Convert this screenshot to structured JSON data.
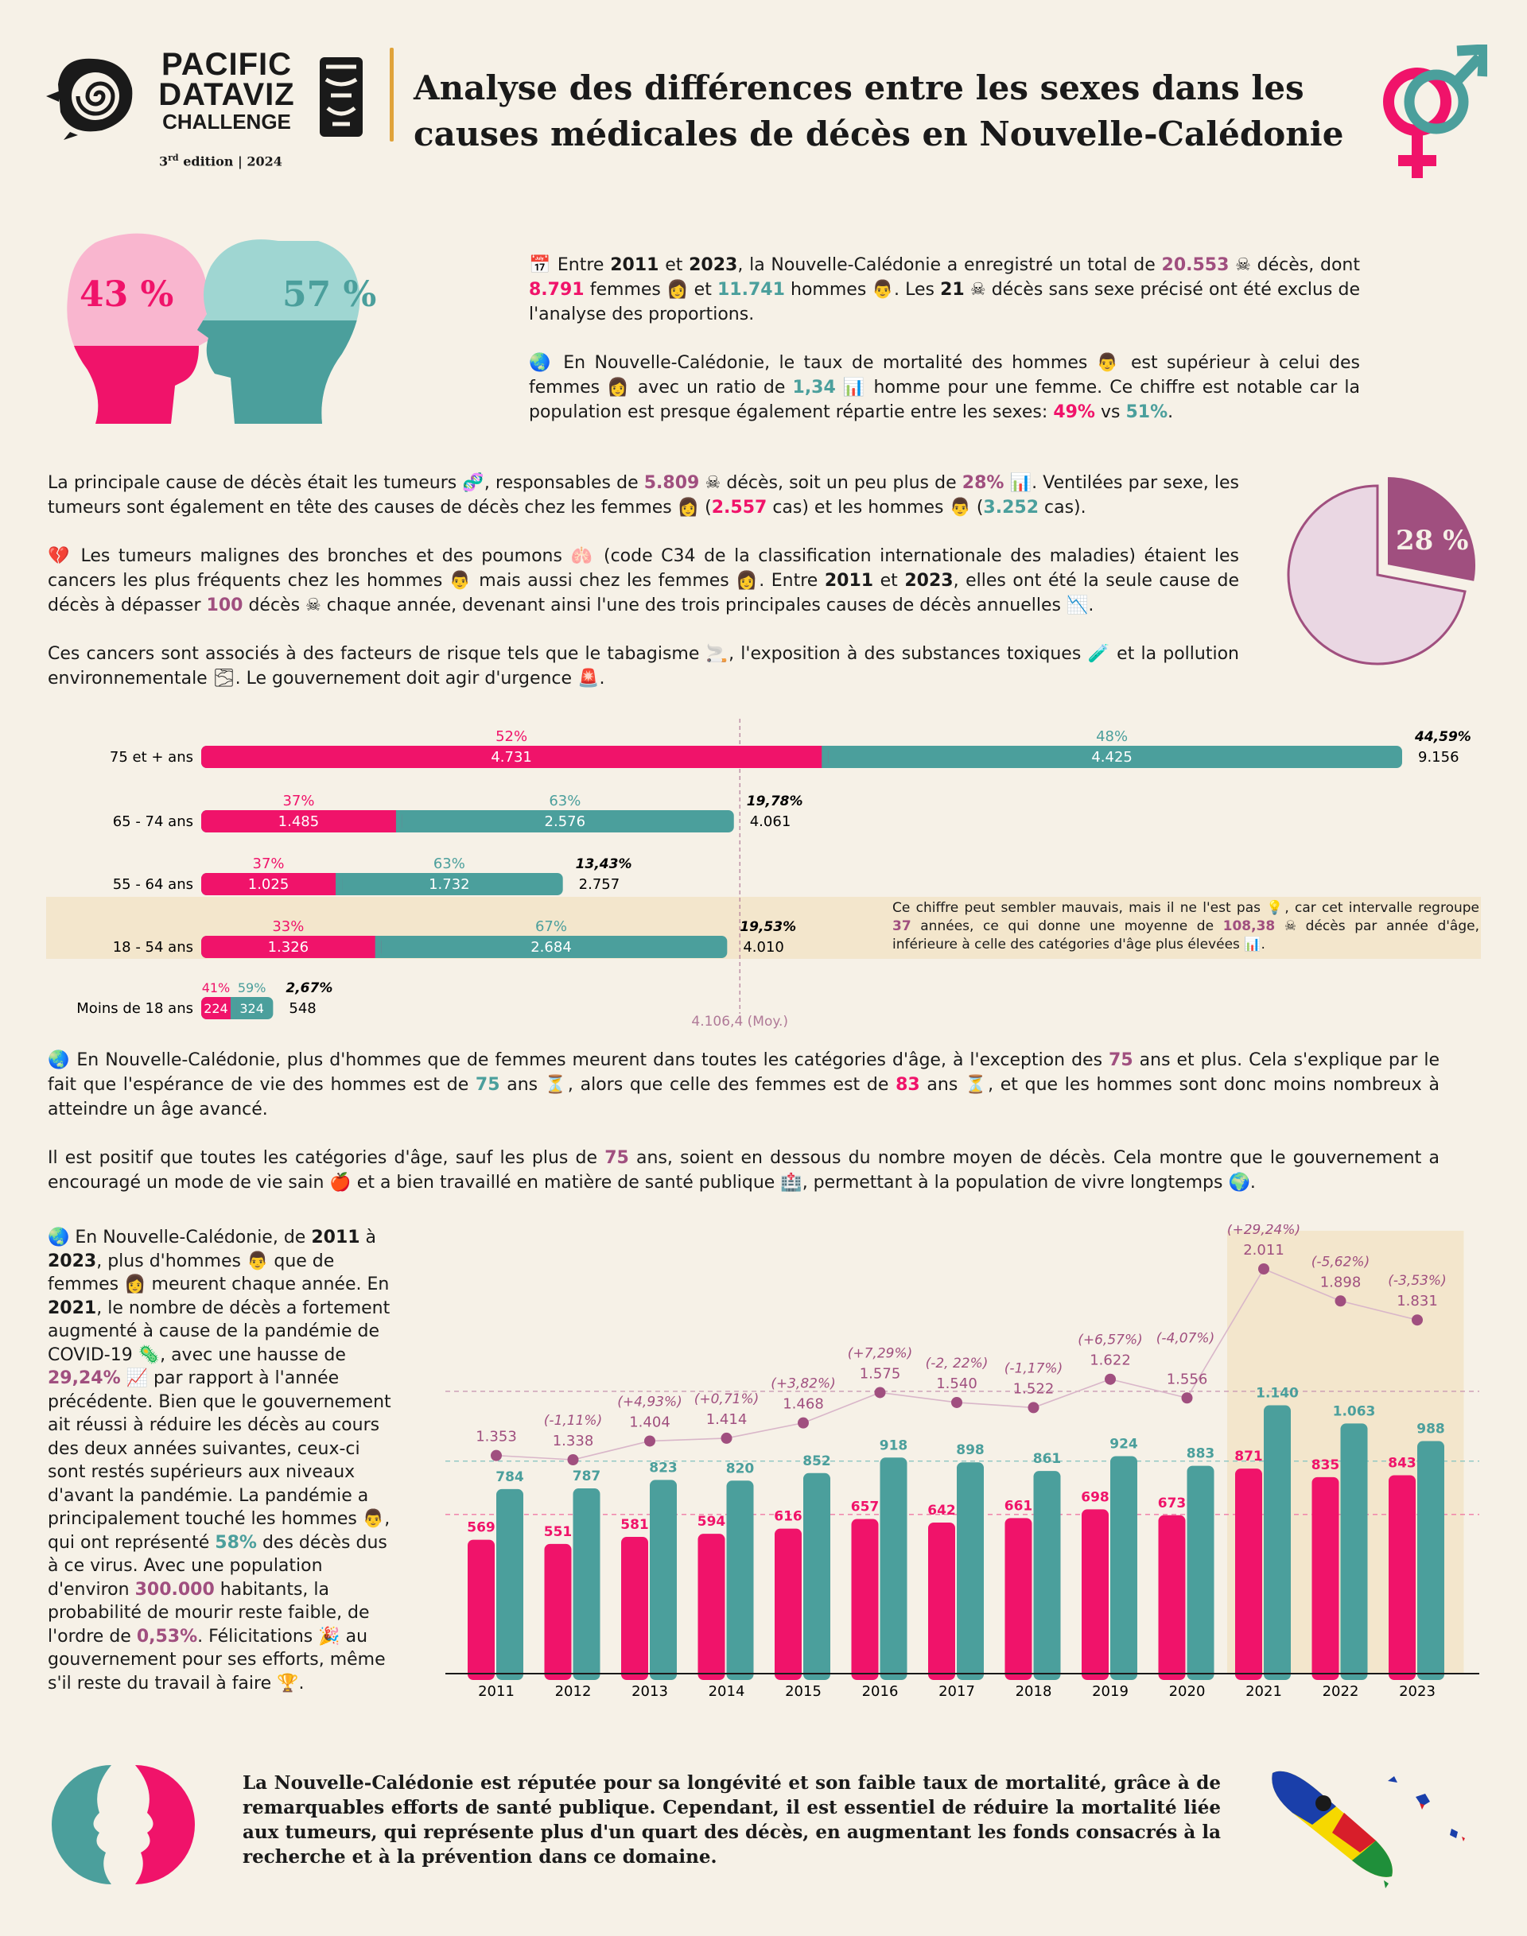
{
  "header": {
    "logo_line1": "PACIFIC",
    "logo_line2": "DATAVIZ",
    "logo_line3": "CHALLENGE",
    "edition_num": "3",
    "edition_sup": "rd",
    "edition_rest": "edition | 2024",
    "title_line1": "Analyse des différences entre les sexes dans les",
    "title_line2": "causes médicales de décès en Nouvelle-Calédonie"
  },
  "heads": {
    "female_pct": "43 %",
    "male_pct": "57 %"
  },
  "intro": {
    "p1": [
      {
        "t": "📅 Entre "
      },
      {
        "t": "2011",
        "c": "b"
      },
      {
        "t": " et "
      },
      {
        "t": "2023",
        "c": "b"
      },
      {
        "t": ", la Nouvelle-Calédonie a enregistré un total de "
      },
      {
        "t": "20.553",
        "c": "plum"
      },
      {
        "t": " ☠ décès, dont "
      },
      {
        "t": "8.791",
        "c": "pink"
      },
      {
        "t": " femmes 👩 et "
      },
      {
        "t": "11.741",
        "c": "teal"
      },
      {
        "t": " hommes 👨. Les "
      },
      {
        "t": "21",
        "c": "b"
      },
      {
        "t": " ☠ décès sans sexe précisé ont été exclus de l'analyse des proportions."
      }
    ],
    "p2": [
      {
        "t": "🌏 En Nouvelle-Calédonie, le taux de mortalité des hommes 👨 est supérieur à celui des femmes 👩 avec un ratio de "
      },
      {
        "t": "1,34",
        "c": "teal"
      },
      {
        "t": " 📊 homme pour une femme. Ce chiffre est notable car la population est presque également répartie entre les sexes: "
      },
      {
        "t": "49%",
        "c": "pink"
      },
      {
        "t": " vs "
      },
      {
        "t": "51%",
        "c": "teal"
      },
      {
        "t": "."
      }
    ]
  },
  "tumors": {
    "p1": [
      {
        "t": "La principale cause de décès était les tumeurs 🧬, responsables de "
      },
      {
        "t": "5.809",
        "c": "plum"
      },
      {
        "t": " ☠ décès, soit un peu plus de "
      },
      {
        "t": "28%",
        "c": "plum"
      },
      {
        "t": " 📊. Ventilées par sexe, les tumeurs sont également en tête des causes de décès chez les femmes 👩 ("
      },
      {
        "t": "2.557",
        "c": "pink"
      },
      {
        "t": " cas) et les hommes 👨 ("
      },
      {
        "t": "3.252",
        "c": "teal"
      },
      {
        "t": " cas)."
      }
    ],
    "p2": [
      {
        "t": "💔 Les tumeurs malignes des bronches et des poumons 🫁 (code C34 de la classification internationale des maladies) étaient les cancers les plus fréquents chez les hommes 👨 mais aussi chez les femmes 👩. Entre "
      },
      {
        "t": "2011",
        "c": "b"
      },
      {
        "t": " et "
      },
      {
        "t": "2023",
        "c": "b"
      },
      {
        "t": ", elles ont été la seule cause de décès à dépasser "
      },
      {
        "t": "100",
        "c": "plum"
      },
      {
        "t": " décès ☠ chaque année, devenant ainsi l'une des trois principales causes de décès annuelles 📉."
      }
    ],
    "p3": [
      {
        "t": "Ces cancers sont associés à des facteurs de risque tels que le tabagisme 🚬, l'exposition à des substances toxiques 🧪 et la pollution environnementale 🌫. Le gouvernement doit agir d'urgence 🚨."
      }
    ],
    "pie_label": "28 %",
    "pie_share": 0.28
  },
  "age_chart": {
    "rows": [
      {
        "label": "75 et + ans",
        "f_pct": "52%",
        "m_pct": "48%",
        "f": "4.731",
        "m": "4.425",
        "f_n": 4731,
        "m_n": 4425,
        "share": "44,59%",
        "total": "9.156"
      },
      {
        "label": "65 - 74 ans",
        "f_pct": "37%",
        "m_pct": "63%",
        "f": "1.485",
        "m": "2.576",
        "f_n": 1485,
        "m_n": 2576,
        "share": "19,78%",
        "total": "4.061"
      },
      {
        "label": "55 - 64 ans",
        "f_pct": "37%",
        "m_pct": "63%",
        "f": "1.025",
        "m": "1.732",
        "f_n": 1025,
        "m_n": 1732,
        "share": "13,43%",
        "total": "2.757"
      },
      {
        "label": "18 - 54 ans",
        "f_pct": "33%",
        "m_pct": "67%",
        "f": "1.326",
        "m": "2.684",
        "f_n": 1326,
        "m_n": 2684,
        "share": "19,53%",
        "total": "4.010"
      },
      {
        "label": "Moins de 18 ans",
        "f_pct": "41%",
        "m_pct": "59%",
        "f": "224",
        "m": "324",
        "f_n": 224,
        "m_n": 324,
        "share": "2,67%",
        "total": "548"
      }
    ],
    "mean_label": "4.106,4 (Moy.)",
    "mean_value": 4106.4,
    "note": [
      {
        "t": "Ce chiffre peut sembler mauvais, mais il ne l'est pas 💡, car cet intervalle regroupe "
      },
      {
        "t": "37",
        "c": "plum"
      },
      {
        "t": " années, ce qui donne une moyenne de "
      },
      {
        "t": "108,38",
        "c": "plum"
      },
      {
        "t": " ☠ décès par année d'âge, inférieure à celle des catégories d'âge plus élevées 📊."
      }
    ]
  },
  "age_text": {
    "p1": [
      {
        "t": "🌏 En Nouvelle-Calédonie, plus d'hommes que de femmes meurent dans toutes les catégories d'âge, à l'exception des "
      },
      {
        "t": "75",
        "c": "plum"
      },
      {
        "t": " ans et plus. Cela s'explique par le fait que l'espérance de vie des hommes est de "
      },
      {
        "t": "75",
        "c": "teal"
      },
      {
        "t": " ans ⏳, alors que celle des femmes est de "
      },
      {
        "t": "83",
        "c": "pink"
      },
      {
        "t": " ans ⏳, et que les hommes sont donc moins nombreux à atteindre un âge avancé."
      }
    ],
    "p2": [
      {
        "t": "Il est positif que toutes les catégories d'âge, sauf les plus de "
      },
      {
        "t": "75",
        "c": "plum"
      },
      {
        "t": " ans, soient en dessous du nombre moyen de décès. Cela montre que le gouvernement a encouragé un mode de vie sain 🍎 et a bien travaillé en matière de santé publique 🏥, permettant à la population de vivre longtemps 🌍."
      }
    ]
  },
  "covid_text": [
    {
      "t": "🌏 En Nouvelle-Calédonie, de "
    },
    {
      "t": "2011",
      "c": "b"
    },
    {
      "t": " à "
    },
    {
      "t": "2023",
      "c": "b"
    },
    {
      "t": ", plus d'hommes 👨 que de femmes 👩 meurent chaque année. En "
    },
    {
      "t": "2021",
      "c": "b"
    },
    {
      "t": ", le nombre de décès a fortement augmenté à cause de la pandémie de COVID-19 🦠, avec une hausse de "
    },
    {
      "t": "29,24%",
      "c": "plum"
    },
    {
      "t": " 📈 par rapport à l'année précédente. Bien que le gouvernement ait réussi à réduire les décès au cours des deux années suivantes, ceux-ci sont restés supérieurs aux niveaux d'avant la pandémie. La pandémie a principalement touché les hommes 👨, qui ont représenté "
    },
    {
      "t": "58%",
      "c": "teal"
    },
    {
      "t": " des décès dus à ce virus. Avec une population d'environ "
    },
    {
      "t": "300.000",
      "c": "plum"
    },
    {
      "t": " habitants, la probabilité de mourir reste faible, de l'ordre de "
    },
    {
      "t": "0,53%",
      "c": "plum"
    },
    {
      "t": ". Félicitations 🎉 au gouvernement pour ses efforts, même s'il reste du travail à faire 🏆."
    }
  ],
  "chart_data": {
    "type": "bar",
    "categories": [
      "2011",
      "2012",
      "2013",
      "2014",
      "2015",
      "2016",
      "2017",
      "2018",
      "2019",
      "2020",
      "2021",
      "2022",
      "2023"
    ],
    "series": [
      {
        "values": [
          569,
          551,
          581,
          594,
          616,
          657,
          642,
          661,
          698,
          673,
          871,
          835,
          843
        ],
        "labels": [
          "569",
          "551",
          "581",
          "594",
          "616",
          "657",
          "642",
          "661",
          "698",
          "673",
          "871",
          "835",
          "843"
        ]
      },
      {
        "values": [
          784,
          787,
          823,
          820,
          852,
          918,
          898,
          861,
          924,
          883,
          1140,
          1063,
          988
        ],
        "labels": [
          "784",
          "787",
          "823",
          "820",
          "852",
          "918",
          "898",
          "861",
          "924",
          "883",
          "1.140",
          "1.063",
          "988"
        ]
      }
    ],
    "totals": {
      "values": [
        1353,
        1338,
        1404,
        1414,
        1468,
        1575,
        1540,
        1522,
        1622,
        1556,
        2011,
        1898,
        1831
      ],
      "labels": [
        "1.353",
        "1.338",
        "1.404",
        "1.414",
        "1.468",
        "1.575",
        "1.540",
        "1.522",
        "1.622",
        "1.556",
        "2.011",
        "1.898",
        "1.831"
      ],
      "changes": [
        "",
        "(-1,11%)",
        "(+4,93%)",
        "(+0,71%)",
        "(+3,82%)",
        "(+7,29%)",
        "(-2, 22%)",
        "(-1,17%)",
        "(+6,57%)",
        "(-4,07%)",
        "(+29,24%)",
        "(-5,62%)",
        "(-3,53%)"
      ]
    },
    "highlight": [
      "2021",
      "2022",
      "2023"
    ],
    "colors": {
      "female": "#f0136a",
      "male": "#4b9f9c",
      "total": "#a04f7f",
      "highlight": "#f3e6cc"
    }
  },
  "conclusion": "La Nouvelle-Calédonie est réputée pour sa longévité et son faible taux de mortalité, grâce à de remarquables efforts de santé publique. Cependant, il est essentiel de réduire la mortalité liée aux tumeurs, qui représente plus d'un quart des décès, en augmentant les fonds consacrés à la recherche et à la prévention dans ce domaine."
}
